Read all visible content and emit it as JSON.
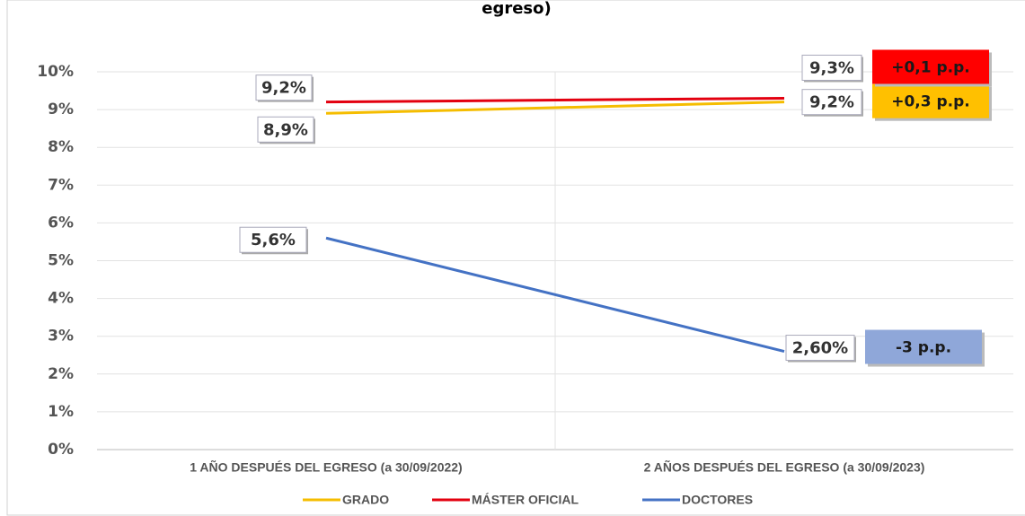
{
  "chart_data": {
    "type": "line",
    "title": "egreso)",
    "categories": [
      "1 AÑO DESPUÉS DEL EGRESO (a 30/09/2022)",
      "2 AÑOS DESPUÉS DEL EGRESO (a 30/09/2023)"
    ],
    "series": [
      {
        "name": "GRADO",
        "color": "#f5bd00",
        "values": [
          8.9,
          9.2
        ],
        "value_labels": [
          "8,9%",
          "9,2%"
        ]
      },
      {
        "name": "MÁSTER OFICIAL",
        "color": "#e3000f",
        "values": [
          9.2,
          9.3
        ],
        "value_labels": [
          "9,2%",
          "9,3%"
        ]
      },
      {
        "name": "DOCTORES",
        "color": "#4472c4",
        "values": [
          5.6,
          2.6
        ],
        "value_labels": [
          "5,6%",
          "2,60%"
        ]
      }
    ],
    "annotations": [
      {
        "text": "+0,3 p.p.",
        "color": "#ffc000"
      },
      {
        "text": "+0,1 p.p.",
        "color": "#ff0000"
      },
      {
        "text": "-3 p.p.",
        "color": "#8fa7d9"
      }
    ],
    "ylim": [
      0,
      10
    ],
    "yticks": [
      {
        "value": 0,
        "label": "0%"
      },
      {
        "value": 1,
        "label": "1%"
      },
      {
        "value": 2,
        "label": "2%"
      },
      {
        "value": 3,
        "label": "3%"
      },
      {
        "value": 4,
        "label": "4%"
      },
      {
        "value": 5,
        "label": "5%"
      },
      {
        "value": 6,
        "label": "6%"
      },
      {
        "value": 7,
        "label": "7%"
      },
      {
        "value": 8,
        "label": "8%"
      },
      {
        "value": 9,
        "label": "9%"
      },
      {
        "value": 10,
        "label": "10%"
      }
    ],
    "grid": true,
    "legend": "bottom"
  }
}
